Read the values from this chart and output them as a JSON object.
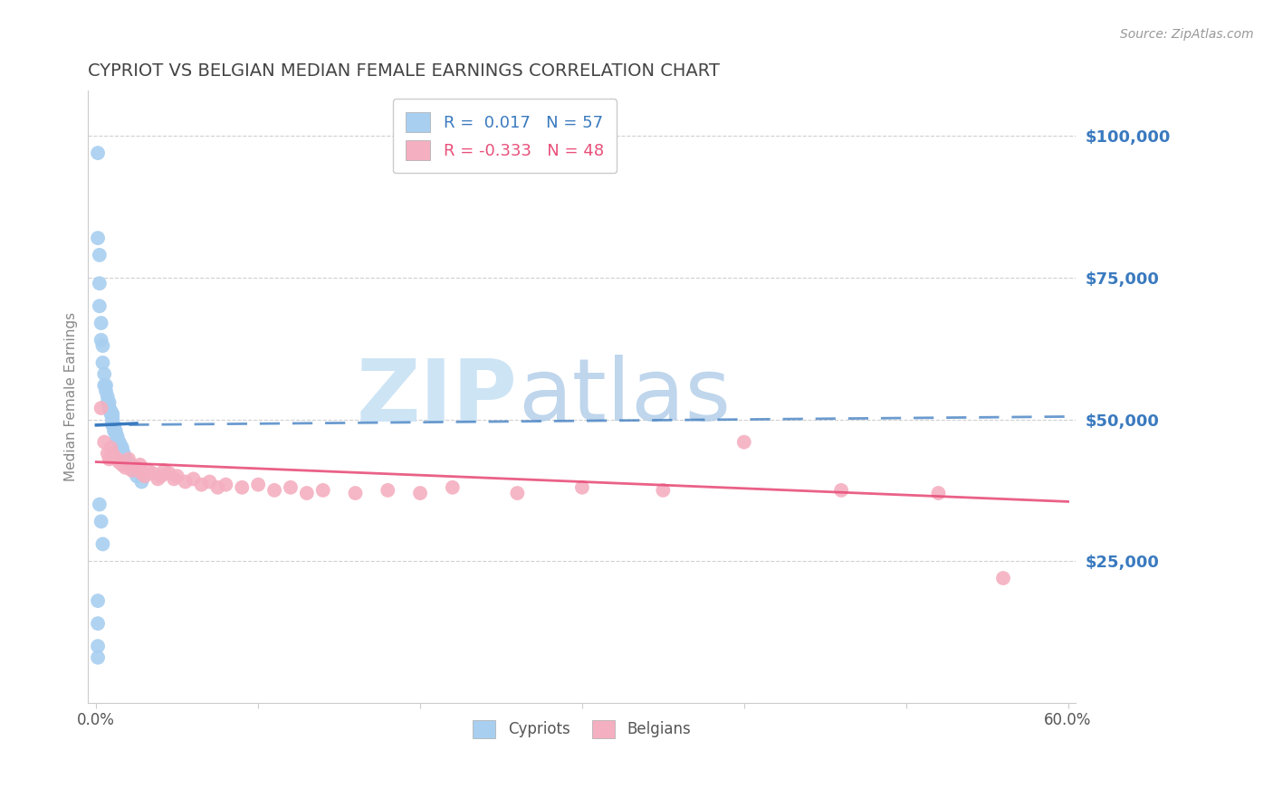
{
  "title": "CYPRIOT VS BELGIAN MEDIAN FEMALE EARNINGS CORRELATION CHART",
  "source_text": "Source: ZipAtlas.com",
  "ylabel": "Median Female Earnings",
  "xlim": [
    -0.005,
    0.605
  ],
  "ylim": [
    0,
    108000
  ],
  "yticks": [
    25000,
    50000,
    75000,
    100000
  ],
  "ytick_labels": [
    "$25,000",
    "$50,000",
    "$75,000",
    "$100,000"
  ],
  "xticks": [
    0.0,
    0.1,
    0.2,
    0.3,
    0.4,
    0.5,
    0.6
  ],
  "xtick_labels": [
    "0.0%",
    "",
    "",
    "",
    "",
    "",
    "60.0%"
  ],
  "background_color": "#ffffff",
  "grid_color": "#d0d0d0",
  "cypriot_color": "#a8cff0",
  "belgian_color": "#f4afc0",
  "cypriot_line_color": "#3a7abf",
  "belgian_line_color": "#e8507a",
  "cypriot_R": 0.017,
  "cypriot_N": 57,
  "belgian_R": -0.333,
  "belgian_N": 48,
  "watermark_zip_color": "#cde4f5",
  "watermark_atlas_color": "#b0cce8",
  "title_color": "#444444",
  "ytick_color": "#3a7abf",
  "cypriot_x": [
    0.001,
    0.001,
    0.002,
    0.002,
    0.002,
    0.003,
    0.003,
    0.004,
    0.004,
    0.005,
    0.005,
    0.006,
    0.006,
    0.007,
    0.007,
    0.008,
    0.008,
    0.008,
    0.009,
    0.009,
    0.01,
    0.01,
    0.01,
    0.01,
    0.01,
    0.01,
    0.011,
    0.011,
    0.011,
    0.012,
    0.012,
    0.013,
    0.013,
    0.014,
    0.014,
    0.015,
    0.015,
    0.016,
    0.016,
    0.016,
    0.017,
    0.017,
    0.018,
    0.018,
    0.019,
    0.02,
    0.021,
    0.023,
    0.025,
    0.028,
    0.002,
    0.003,
    0.004,
    0.001,
    0.001,
    0.001,
    0.001
  ],
  "cypriot_y": [
    97000,
    82000,
    79000,
    74000,
    70000,
    67000,
    64000,
    63000,
    60000,
    58000,
    56000,
    56000,
    55000,
    54000,
    53000,
    53000,
    52000,
    52000,
    51500,
    51000,
    51000,
    50500,
    50000,
    50000,
    49500,
    49000,
    49000,
    48500,
    48000,
    48000,
    47500,
    47000,
    46500,
    46000,
    46000,
    45500,
    45000,
    45000,
    44500,
    44000,
    44000,
    43500,
    43000,
    43000,
    42500,
    42000,
    42000,
    41000,
    40000,
    39000,
    35000,
    32000,
    28000,
    18000,
    14000,
    10000,
    8000
  ],
  "belgian_x": [
    0.003,
    0.005,
    0.007,
    0.008,
    0.009,
    0.01,
    0.011,
    0.013,
    0.014,
    0.016,
    0.018,
    0.02,
    0.022,
    0.025,
    0.027,
    0.028,
    0.03,
    0.032,
    0.035,
    0.038,
    0.04,
    0.042,
    0.045,
    0.048,
    0.05,
    0.055,
    0.06,
    0.065,
    0.07,
    0.075,
    0.08,
    0.09,
    0.1,
    0.11,
    0.12,
    0.13,
    0.14,
    0.16,
    0.18,
    0.2,
    0.22,
    0.26,
    0.3,
    0.35,
    0.4,
    0.46,
    0.52,
    0.56
  ],
  "belgian_y": [
    52000,
    46000,
    44000,
    43000,
    45000,
    44000,
    43500,
    43000,
    42500,
    42000,
    41500,
    43000,
    41000,
    41500,
    42000,
    40500,
    40000,
    41000,
    40500,
    39500,
    40000,
    41000,
    40500,
    39500,
    40000,
    39000,
    39500,
    38500,
    39000,
    38000,
    38500,
    38000,
    38500,
    37500,
    38000,
    37000,
    37500,
    37000,
    37500,
    37000,
    38000,
    37000,
    38000,
    37500,
    46000,
    37500,
    37000,
    22000
  ],
  "cyp_line_x0": 0.0,
  "cyp_line_x1": 0.6,
  "cyp_line_y0": 49000,
  "cyp_line_y1": 50500,
  "bel_line_x0": 0.0,
  "bel_line_x1": 0.6,
  "bel_line_y0": 42500,
  "bel_line_y1": 35500
}
